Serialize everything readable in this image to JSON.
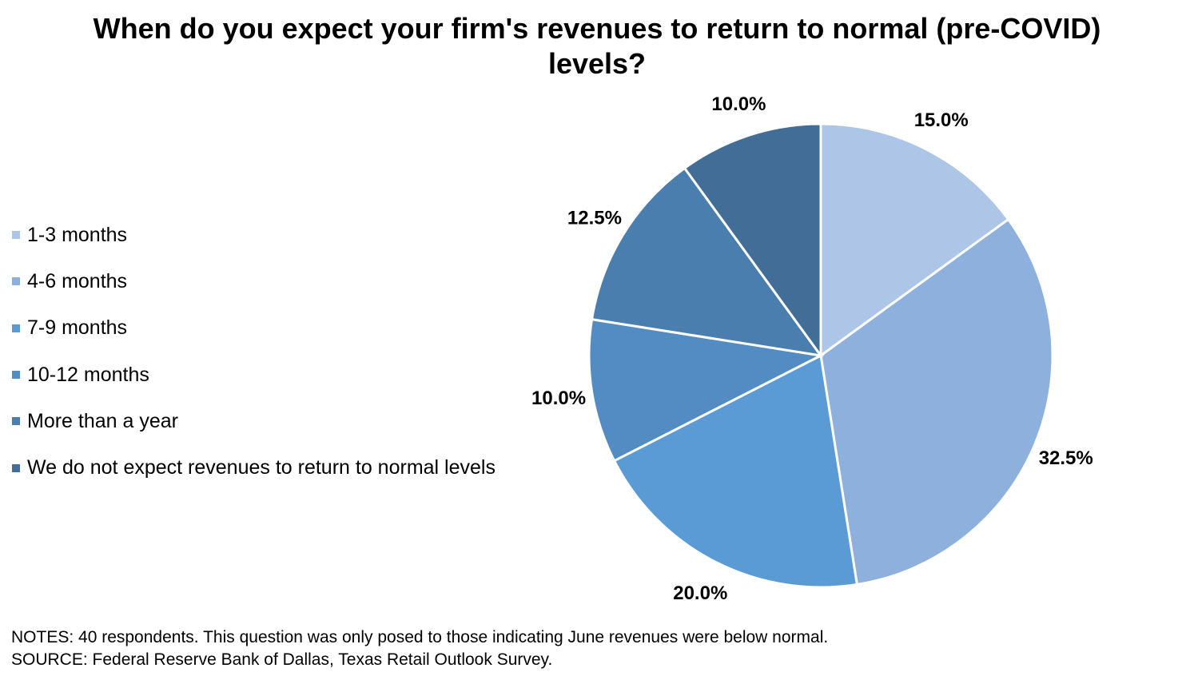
{
  "chart_data": {
    "type": "pie",
    "title": "When do you expect your firm's revenues to return to normal (pre-COVID) levels?",
    "title_lines": [
      "When do you expect your firm's revenues to return to normal (pre-COVID)",
      "levels?"
    ],
    "categories": [
      "1-3 months",
      "4-6 months",
      "7-9 months",
      "10-12 months",
      "More than a year",
      "We do not expect revenues to return to normal levels"
    ],
    "values": [
      15.0,
      32.5,
      20.0,
      10.0,
      12.5,
      10.0
    ],
    "labels": [
      "15.0%",
      "32.5%",
      "20.0%",
      "10.0%",
      "12.5%",
      "10.0%"
    ],
    "colors": [
      "#adc5e6",
      "#8eb0dc",
      "#5b9bd5",
      "#528cc2",
      "#4a7eae",
      "#416d97"
    ],
    "legend_position": "left"
  },
  "notes": [
    "NOTES: 40 respondents. This question was only posed to those indicating June revenues were below normal.",
    "SOURCE: Federal Reserve Bank of Dallas, Texas Retail Outlook Survey."
  ]
}
